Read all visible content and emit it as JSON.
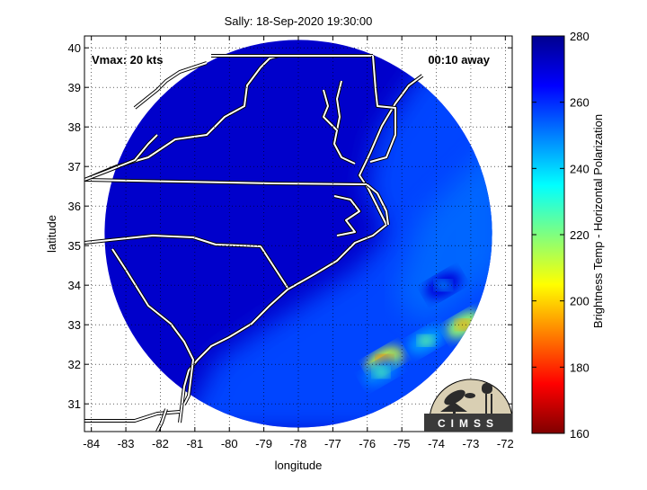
{
  "figure": {
    "title": "Sally: 18-Sep-2020 19:30:00",
    "vmax_label": "Vmax: 20 kts",
    "time_label": "00:10 away",
    "xlabel": "longitude",
    "ylabel": "latitude",
    "colorbar_label": "Brightness Temp - Horizontal Polarization",
    "logo_text": "CIMSS"
  },
  "map": {
    "lon_range": [
      -84.2,
      -71.8
    ],
    "lat_range": [
      30.3,
      40.3
    ],
    "x_ticks": [
      -84,
      -83,
      -82,
      -81,
      -80,
      -79,
      -78,
      -77,
      -76,
      -75,
      -74,
      -73,
      -72
    ],
    "y_ticks": [
      31,
      32,
      33,
      34,
      35,
      36,
      37,
      38,
      39,
      40
    ],
    "grid": true,
    "swath_center": [
      -78.0,
      35.3
    ],
    "swath_radius_deg_lat": 4.9,
    "background_tb": 272,
    "offshore_tb": 257,
    "convective_cells": [
      {
        "lon": -73.2,
        "lat": 33.0,
        "tb": 192
      },
      {
        "lon": -75.5,
        "lat": 32.1,
        "tb": 185
      },
      {
        "lon": -74.3,
        "lat": 32.6,
        "tb": 222
      },
      {
        "lon": -75.6,
        "lat": 31.8,
        "tb": 225
      },
      {
        "lon": -73.8,
        "lat": 34.0,
        "tb": 245
      }
    ]
  },
  "colorbar": {
    "min": 160,
    "max": 280,
    "ticks": [
      160,
      180,
      200,
      220,
      240,
      260,
      280
    ],
    "colormap": "jet"
  },
  "colors": {
    "border_white": "#ffffff",
    "outline_black": "#000000"
  }
}
